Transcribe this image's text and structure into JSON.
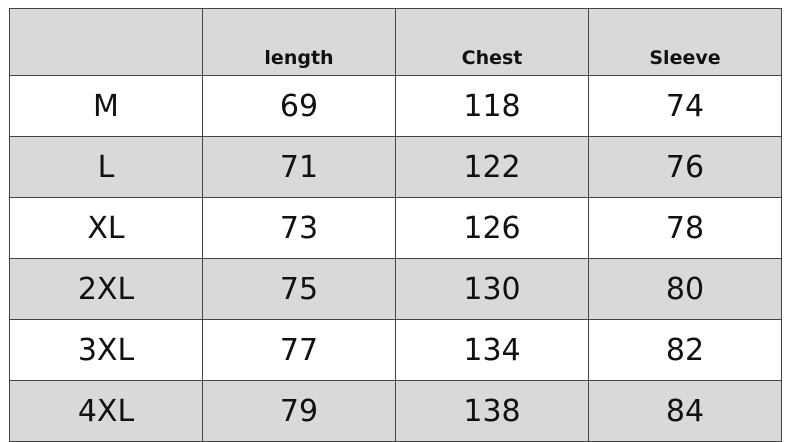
{
  "table": {
    "headers": [
      "",
      "length",
      "Chest",
      "Sleeve"
    ],
    "rows": [
      [
        "M",
        "69",
        "118",
        "74"
      ],
      [
        "L",
        "71",
        "122",
        "76"
      ],
      [
        "XL",
        "73",
        "126",
        "78"
      ],
      [
        "2XL",
        "75",
        "130",
        "80"
      ],
      [
        "3XL",
        "77",
        "134",
        "82"
      ],
      [
        "4XL",
        "79",
        "138",
        "84"
      ]
    ]
  },
  "colors": {
    "shaded_row": "#d9d9d9",
    "border": "#444444"
  }
}
